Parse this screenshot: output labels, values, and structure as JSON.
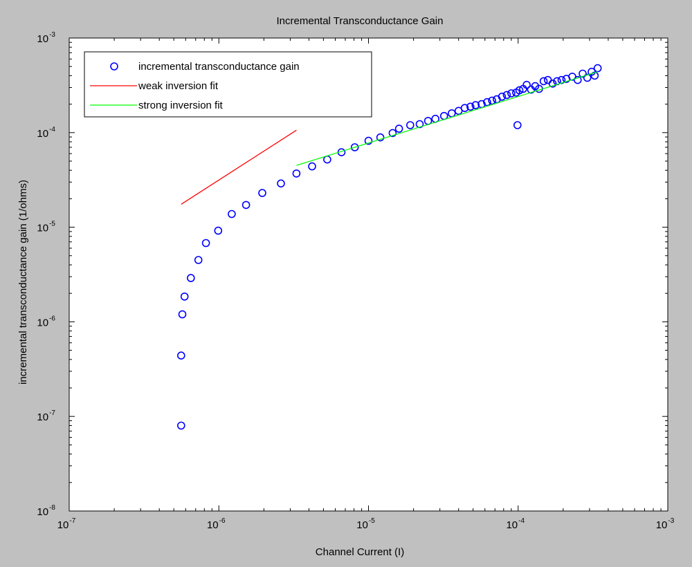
{
  "chart_data": {
    "type": "scatter",
    "title": "Incremental Transconductance Gain",
    "xlabel": "Channel Current (I)",
    "ylabel": "incremental transconductance gain (1/ohms)",
    "x_scale": "log",
    "y_scale": "log",
    "xlim": [
      1e-07,
      0.001
    ],
    "ylim": [
      1e-08,
      0.001
    ],
    "x_ticks": [
      {
        "value": 1e-07,
        "base": "10",
        "exp": "-7"
      },
      {
        "value": 1e-06,
        "base": "10",
        "exp": "-6"
      },
      {
        "value": 1e-05,
        "base": "10",
        "exp": "-5"
      },
      {
        "value": 0.0001,
        "base": "10",
        "exp": "-4"
      },
      {
        "value": 0.001,
        "base": "10",
        "exp": "-3"
      }
    ],
    "y_ticks": [
      {
        "value": 1e-08,
        "base": "10",
        "exp": "-8"
      },
      {
        "value": 1e-07,
        "base": "10",
        "exp": "-7"
      },
      {
        "value": 1e-06,
        "base": "10",
        "exp": "-6"
      },
      {
        "value": 1e-05,
        "base": "10",
        "exp": "-5"
      },
      {
        "value": 0.0001,
        "base": "10",
        "exp": "-4"
      },
      {
        "value": 0.001,
        "base": "10",
        "exp": "-3"
      }
    ],
    "grid": false,
    "legend_position": "top-left",
    "series": [
      {
        "name": "incremental transconductance gain",
        "kind": "markers",
        "marker": "circle",
        "color": "#0000ff",
        "points": [
          [
            5.6e-07,
            8e-08
          ],
          [
            5.6e-07,
            4.4e-07
          ],
          [
            5.7e-07,
            1.2e-06
          ],
          [
            5.9e-07,
            1.85e-06
          ],
          [
            6.5e-07,
            2.9e-06
          ],
          [
            7.3e-07,
            4.5e-06
          ],
          [
            8.2e-07,
            6.8e-06
          ],
          [
            9.9e-07,
            9.2e-06
          ],
          [
            1.22e-06,
            1.38e-05
          ],
          [
            1.52e-06,
            1.72e-05
          ],
          [
            1.95e-06,
            2.3e-05
          ],
          [
            2.6e-06,
            2.9e-05
          ],
          [
            3.3e-06,
            3.7e-05
          ],
          [
            4.2e-06,
            4.4e-05
          ],
          [
            5.3e-06,
            5.2e-05
          ],
          [
            6.6e-06,
            6.2e-05
          ],
          [
            8.1e-06,
            7e-05
          ],
          [
            1e-05,
            8.2e-05
          ],
          [
            1.2e-05,
            8.9e-05
          ],
          [
            1.45e-05,
            9.9e-05
          ],
          [
            1.6e-05,
            0.00011
          ],
          [
            1.9e-05,
            0.00012
          ],
          [
            2.2e-05,
            0.000123
          ],
          [
            2.5e-05,
            0.000133
          ],
          [
            2.8e-05,
            0.00014
          ],
          [
            3.2e-05,
            0.00015
          ],
          [
            3.6e-05,
            0.00016
          ],
          [
            4e-05,
            0.00017
          ],
          [
            4.4e-05,
            0.000182
          ],
          [
            4.8e-05,
            0.000188
          ],
          [
            5.2e-05,
            0.000195
          ],
          [
            5.7e-05,
            0.0002
          ],
          [
            6.2e-05,
            0.00021
          ],
          [
            6.7e-05,
            0.000218
          ],
          [
            7.2e-05,
            0.000225
          ],
          [
            7.8e-05,
            0.00024
          ],
          [
            8.4e-05,
            0.00025
          ],
          [
            9e-05,
            0.00026
          ],
          [
            9.7e-05,
            0.000265
          ],
          [
            0.000102,
            0.00028
          ],
          [
            0.000108,
            0.00029
          ],
          [
            0.000114,
            0.00032
          ],
          [
            0.000122,
            0.000285
          ],
          [
            0.00013,
            0.00031
          ],
          [
            0.000138,
            0.00029
          ],
          [
            0.000148,
            0.00035
          ],
          [
            0.000158,
            0.00036
          ],
          [
            0.00017,
            0.00033
          ],
          [
            0.000182,
            0.00035
          ],
          [
            0.000195,
            0.00036
          ],
          [
            0.00021,
            0.00037
          ],
          [
            0.00023,
            0.00039
          ],
          [
            0.00025,
            0.00036
          ],
          [
            0.00027,
            0.00042
          ],
          [
            0.00029,
            0.00038
          ],
          [
            0.00031,
            0.00044
          ],
          [
            0.000325,
            0.0004
          ],
          [
            0.00034,
            0.00048
          ],
          [
            9.9e-05,
            0.00012
          ]
        ]
      },
      {
        "name": "weak inversion fit",
        "kind": "line",
        "color": "#ff0000",
        "points": [
          [
            5.6e-07,
            1.75e-05
          ],
          [
            3.3e-06,
            0.000106
          ]
        ]
      },
      {
        "name": "strong inversion fit",
        "kind": "line",
        "color": "#00ff00",
        "points": [
          [
            3.3e-06,
            4.5e-05
          ],
          [
            0.00034,
            0.00044
          ]
        ]
      }
    ]
  }
}
